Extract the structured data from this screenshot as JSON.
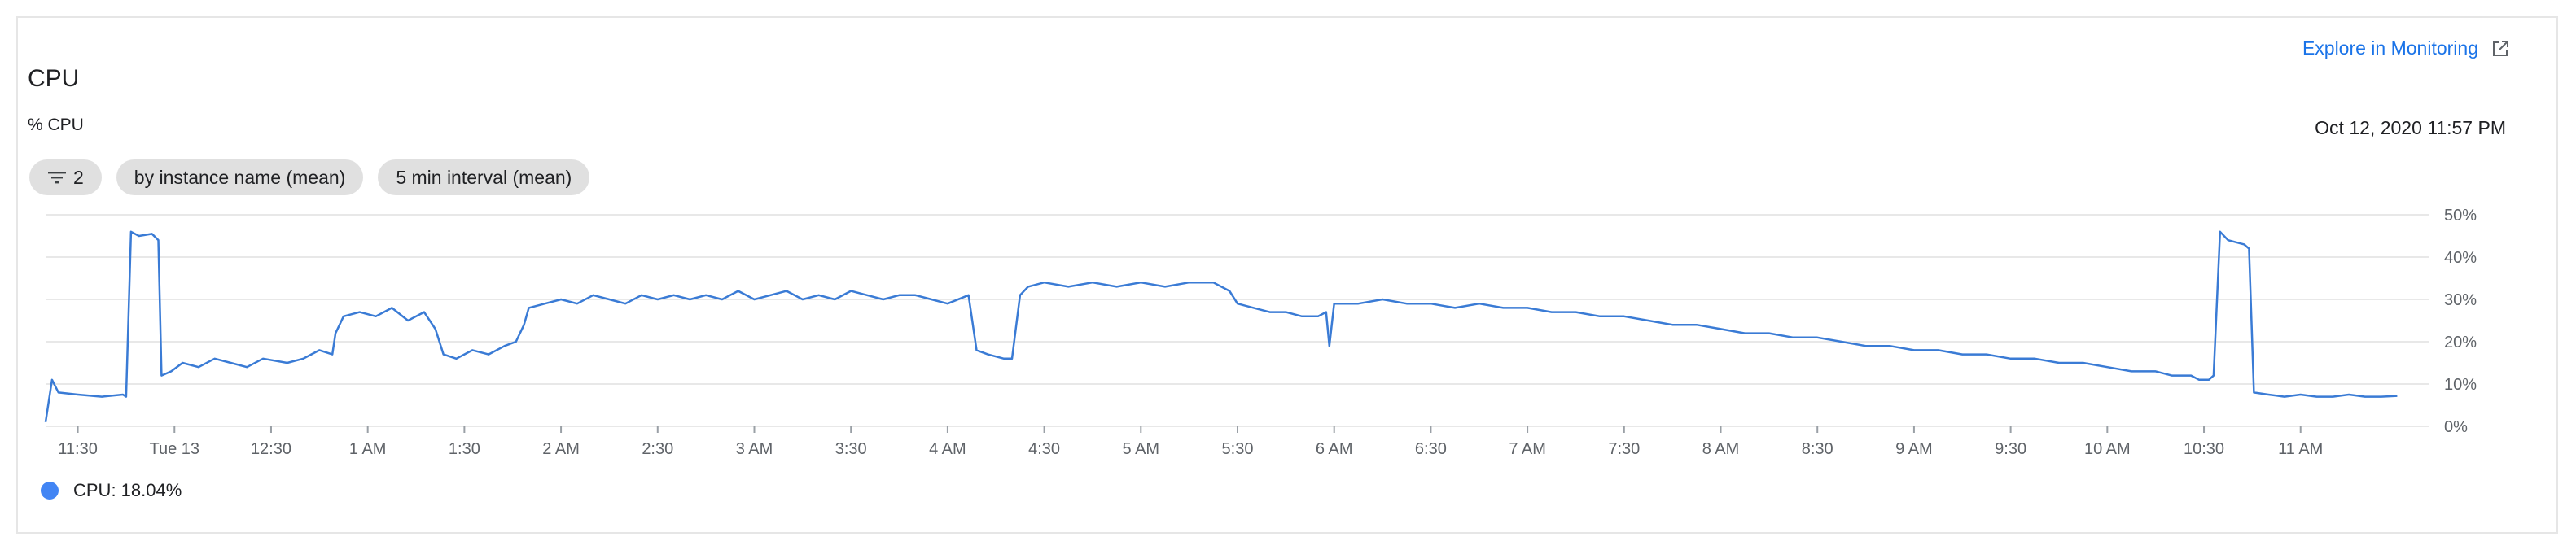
{
  "card": {
    "title": "CPU",
    "unit_label": "% CPU",
    "explore_label": "Explore in Monitoring",
    "timestamp": "Oct 12, 2020 11:57 PM"
  },
  "chips": [
    {
      "icon": "filter-icon",
      "label": "2"
    },
    {
      "label": "by instance name (mean)"
    },
    {
      "label": "5 min interval (mean)"
    }
  ],
  "legend": {
    "label": "CPU: 18.04%",
    "color": "#4285f4"
  },
  "colors": {
    "line": "#3a7bd5",
    "grid": "#e8e8e8",
    "link": "#1a73e8"
  },
  "chart_data": {
    "type": "line",
    "title": "CPU",
    "ylabel": "% CPU",
    "ylim": [
      0,
      50
    ],
    "yticks": [
      "0%",
      "10%",
      "20%",
      "30%",
      "40%",
      "50%"
    ],
    "xlim": [
      0,
      1480
    ],
    "xticks": [
      {
        "t": 20,
        "label": "11:30"
      },
      {
        "t": 80,
        "label": "Tue 13"
      },
      {
        "t": 140,
        "label": "12:30"
      },
      {
        "t": 200,
        "label": "1 AM"
      },
      {
        "t": 260,
        "label": "1:30"
      },
      {
        "t": 320,
        "label": "2 AM"
      },
      {
        "t": 380,
        "label": "2:30"
      },
      {
        "t": 440,
        "label": "3 AM"
      },
      {
        "t": 500,
        "label": "3:30"
      },
      {
        "t": 560,
        "label": "4 AM"
      },
      {
        "t": 620,
        "label": "4:30"
      },
      {
        "t": 680,
        "label": "5 AM"
      },
      {
        "t": 740,
        "label": "5:30"
      },
      {
        "t": 800,
        "label": "6 AM"
      },
      {
        "t": 860,
        "label": "6:30"
      },
      {
        "t": 920,
        "label": "7 AM"
      },
      {
        "t": 980,
        "label": "7:30"
      },
      {
        "t": 1040,
        "label": "8 AM"
      },
      {
        "t": 1100,
        "label": "8:30"
      },
      {
        "t": 1160,
        "label": "9 AM"
      },
      {
        "t": 1220,
        "label": "9:30"
      },
      {
        "t": 1280,
        "label": "10 AM"
      },
      {
        "t": 1340,
        "label": "10:30"
      },
      {
        "t": 1400,
        "label": "11 AM"
      }
    ],
    "series": [
      {
        "name": "CPU",
        "color": "#3a7bd5",
        "points": [
          [
            0,
            1
          ],
          [
            4,
            11
          ],
          [
            8,
            8
          ],
          [
            20,
            7.5
          ],
          [
            35,
            7
          ],
          [
            48,
            7.5
          ],
          [
            50,
            7
          ],
          [
            53,
            46
          ],
          [
            58,
            45
          ],
          [
            66,
            45.5
          ],
          [
            70,
            44
          ],
          [
            72,
            12
          ],
          [
            78,
            13
          ],
          [
            85,
            15
          ],
          [
            95,
            14
          ],
          [
            105,
            16
          ],
          [
            115,
            15
          ],
          [
            125,
            14
          ],
          [
            135,
            16
          ],
          [
            150,
            15
          ],
          [
            160,
            16
          ],
          [
            170,
            18
          ],
          [
            178,
            17
          ],
          [
            180,
            22
          ],
          [
            185,
            26
          ],
          [
            195,
            27
          ],
          [
            205,
            26
          ],
          [
            215,
            28
          ],
          [
            225,
            25
          ],
          [
            235,
            27
          ],
          [
            242,
            23
          ],
          [
            247,
            17
          ],
          [
            255,
            16
          ],
          [
            265,
            18
          ],
          [
            275,
            17
          ],
          [
            285,
            19
          ],
          [
            292,
            20
          ],
          [
            297,
            24
          ],
          [
            300,
            28
          ],
          [
            310,
            29
          ],
          [
            320,
            30
          ],
          [
            330,
            29
          ],
          [
            340,
            31
          ],
          [
            350,
            30
          ],
          [
            360,
            29
          ],
          [
            370,
            31
          ],
          [
            380,
            30
          ],
          [
            390,
            31
          ],
          [
            400,
            30
          ],
          [
            410,
            31
          ],
          [
            420,
            30
          ],
          [
            430,
            32
          ],
          [
            440,
            30
          ],
          [
            450,
            31
          ],
          [
            460,
            32
          ],
          [
            470,
            30
          ],
          [
            480,
            31
          ],
          [
            490,
            30
          ],
          [
            500,
            32
          ],
          [
            510,
            31
          ],
          [
            520,
            30
          ],
          [
            530,
            31
          ],
          [
            540,
            31
          ],
          [
            550,
            30
          ],
          [
            560,
            29
          ],
          [
            573,
            31
          ],
          [
            578,
            18
          ],
          [
            585,
            17
          ],
          [
            595,
            16
          ],
          [
            600,
            16
          ],
          [
            605,
            31
          ],
          [
            610,
            33
          ],
          [
            620,
            34
          ],
          [
            635,
            33
          ],
          [
            650,
            34
          ],
          [
            665,
            33
          ],
          [
            680,
            34
          ],
          [
            695,
            33
          ],
          [
            710,
            34
          ],
          [
            725,
            34
          ],
          [
            735,
            32
          ],
          [
            740,
            29
          ],
          [
            750,
            28
          ],
          [
            760,
            27
          ],
          [
            770,
            27
          ],
          [
            780,
            26
          ],
          [
            790,
            26
          ],
          [
            795,
            27
          ],
          [
            797,
            19
          ],
          [
            800,
            29
          ],
          [
            815,
            29
          ],
          [
            830,
            30
          ],
          [
            845,
            29
          ],
          [
            860,
            29
          ],
          [
            875,
            28
          ],
          [
            890,
            29
          ],
          [
            905,
            28
          ],
          [
            920,
            28
          ],
          [
            935,
            27
          ],
          [
            950,
            27
          ],
          [
            965,
            26
          ],
          [
            980,
            26
          ],
          [
            995,
            25
          ],
          [
            1010,
            24
          ],
          [
            1025,
            24
          ],
          [
            1040,
            23
          ],
          [
            1055,
            22
          ],
          [
            1070,
            22
          ],
          [
            1085,
            21
          ],
          [
            1100,
            21
          ],
          [
            1115,
            20
          ],
          [
            1130,
            19
          ],
          [
            1145,
            19
          ],
          [
            1160,
            18
          ],
          [
            1175,
            18
          ],
          [
            1190,
            17
          ],
          [
            1205,
            17
          ],
          [
            1220,
            16
          ],
          [
            1235,
            16
          ],
          [
            1250,
            15
          ],
          [
            1265,
            15
          ],
          [
            1280,
            14
          ],
          [
            1295,
            13
          ],
          [
            1310,
            13
          ],
          [
            1320,
            12
          ],
          [
            1332,
            12
          ],
          [
            1337,
            11
          ],
          [
            1343,
            11
          ],
          [
            1346,
            12
          ],
          [
            1350,
            46
          ],
          [
            1355,
            44
          ],
          [
            1365,
            43
          ],
          [
            1368,
            42
          ],
          [
            1371,
            8
          ],
          [
            1380,
            7.5
          ],
          [
            1390,
            7
          ],
          [
            1400,
            7.5
          ],
          [
            1410,
            7
          ],
          [
            1420,
            7
          ],
          [
            1430,
            7.5
          ],
          [
            1440,
            7
          ],
          [
            1450,
            7
          ],
          [
            1460,
            7.2
          ]
        ]
      }
    ],
    "legend": "bottom-left",
    "grid": true
  }
}
